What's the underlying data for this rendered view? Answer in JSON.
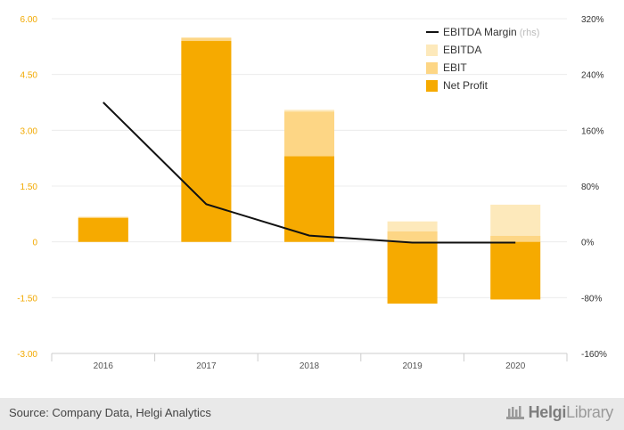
{
  "chart_data": {
    "type": "bar",
    "categories": [
      "2016",
      "2017",
      "2018",
      "2019",
      "2020"
    ],
    "series": [
      {
        "name": "EBITDA",
        "values": [
          0.67,
          5.5,
          3.55,
          0.55,
          1.0
        ],
        "color": "#fde9bb",
        "kind": "bar"
      },
      {
        "name": "EBIT",
        "values": [
          0.67,
          5.48,
          3.5,
          0.28,
          0.16
        ],
        "color": "#fdd685",
        "kind": "bar"
      },
      {
        "name": "Net Profit",
        "values": [
          0.64,
          5.4,
          2.3,
          -1.66,
          -1.55
        ],
        "color": "#f6aa00",
        "kind": "bar"
      },
      {
        "name": "EBITDA Margin",
        "note": "(rhs)",
        "values": [
          200,
          54,
          9,
          -1,
          -1
        ],
        "color": "#111111",
        "kind": "line",
        "axis": "right"
      }
    ],
    "yticks_left": [
      "6.00",
      "4.50",
      "3.00",
      "1.50",
      "0",
      "-1.50",
      "-3.00"
    ],
    "ylim_left": [
      -3,
      6
    ],
    "yticks_right": [
      "320%",
      "240%",
      "160%",
      "80%",
      "0%",
      "-80%",
      "-160%"
    ],
    "ylim_right": [
      -160,
      320
    ],
    "grid": true,
    "legend_position": "top-right"
  },
  "footer": {
    "source": "Source: Company Data, Helgi Analytics",
    "brand_part1": "Helgi",
    "brand_part2": "Library"
  }
}
